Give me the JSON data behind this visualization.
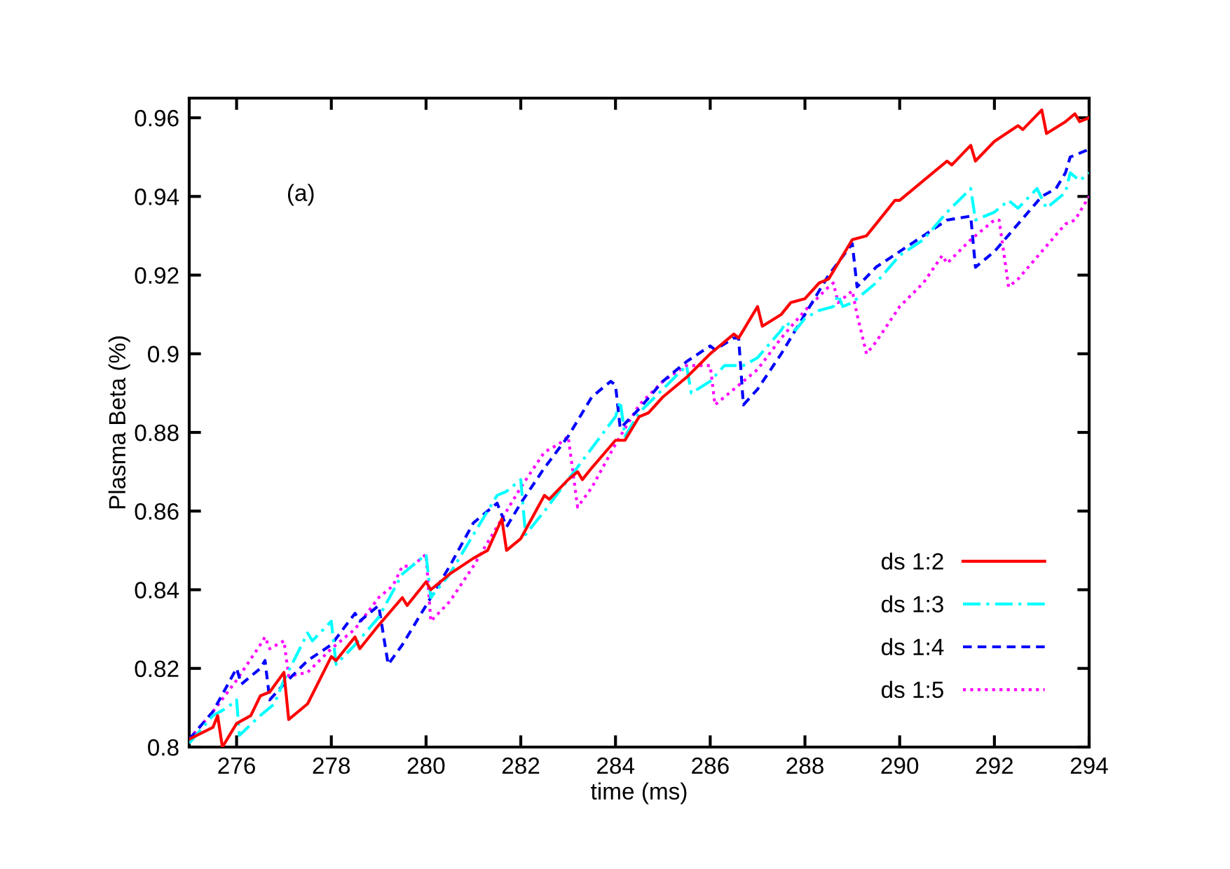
{
  "chart_data": {
    "type": "line",
    "xlabel": "time (ms)",
    "ylabel": "Plasma Beta (%)",
    "xlim": [
      275,
      294
    ],
    "xticks": [
      276,
      278,
      280,
      282,
      284,
      286,
      288,
      290,
      292,
      294
    ],
    "ylim": [
      0.8,
      0.965
    ],
    "yticks": [
      {
        "value": 0.8,
        "label": "0.8"
      },
      0.82,
      0.84,
      0.86,
      0.88,
      {
        "value": 0.9,
        "label": "0.9"
      },
      0.92,
      0.94,
      0.96
    ],
    "grid": false,
    "legend": "bottom right",
    "marker": "none",
    "annotations": [
      "(a)"
    ],
    "series": [
      {
        "name": "ds 1:2",
        "color": "#ff0000",
        "line_style": "solid",
        "x": [
          275,
          275.5,
          275.6,
          275.7,
          276.0,
          276.3,
          276.5,
          276.7,
          277.0,
          277.1,
          277.5,
          278.0,
          278.1,
          278.5,
          278.6,
          279.0,
          279.5,
          279.6,
          280.0,
          280.1,
          280.5,
          281.0,
          281.3,
          281.6,
          281.7,
          282.0,
          282.5,
          282.6,
          283.0,
          283.2,
          283.3,
          283.5,
          284.0,
          284.2,
          284.5,
          284.7,
          285.0,
          285.5,
          286.0,
          286.5,
          286.6,
          287.0,
          287.1,
          287.5,
          287.7,
          288.0,
          288.3,
          288.5,
          289.0,
          289.3,
          289.5,
          289.9,
          290.0,
          290.5,
          291.0,
          291.1,
          291.5,
          291.6,
          292.0,
          292.5,
          292.6,
          293.0,
          293.1,
          293.5,
          293.7,
          293.8,
          294.0
        ],
        "values": [
          0.802,
          0.805,
          0.808,
          0.8,
          0.806,
          0.808,
          0.813,
          0.814,
          0.819,
          0.807,
          0.811,
          0.823,
          0.822,
          0.828,
          0.825,
          0.831,
          0.838,
          0.836,
          0.842,
          0.84,
          0.844,
          0.848,
          0.85,
          0.858,
          0.85,
          0.853,
          0.864,
          0.863,
          0.868,
          0.87,
          0.868,
          0.871,
          0.878,
          0.878,
          0.884,
          0.885,
          0.889,
          0.894,
          0.9,
          0.905,
          0.904,
          0.912,
          0.907,
          0.91,
          0.913,
          0.914,
          0.918,
          0.919,
          0.929,
          0.93,
          0.933,
          0.939,
          0.939,
          0.944,
          0.949,
          0.948,
          0.953,
          0.949,
          0.954,
          0.958,
          0.957,
          0.962,
          0.956,
          0.959,
          0.961,
          0.959,
          0.96
        ]
      },
      {
        "name": "ds 1:3",
        "color": "#00ffff",
        "line_style": "dashdot",
        "x": [
          275,
          275.5,
          275.8,
          276.0,
          276.06,
          276.5,
          276.8,
          277.0,
          277.5,
          277.6,
          278.0,
          278.1,
          278.5,
          279.0,
          279.5,
          279.7,
          280.0,
          280.1,
          280.5,
          281.0,
          281.5,
          281.7,
          282.0,
          282.1,
          282.5,
          283.0,
          283.5,
          284.0,
          284.1,
          284.2,
          284.5,
          285.0,
          285.5,
          285.6,
          286.0,
          286.3,
          286.5,
          286.7,
          287.0,
          287.5,
          287.6,
          287.8,
          288.0,
          288.3,
          288.6,
          288.7,
          288.8,
          289.0,
          289.5,
          290.0,
          290.5,
          291.0,
          291.5,
          291.6,
          292.0,
          292.3,
          292.5,
          292.9,
          293.1,
          293.5,
          293.6,
          293.8,
          294.0
        ],
        "values": [
          0.801,
          0.808,
          0.81,
          0.812,
          0.803,
          0.808,
          0.811,
          0.817,
          0.829,
          0.827,
          0.832,
          0.821,
          0.826,
          0.833,
          0.844,
          0.846,
          0.849,
          0.838,
          0.844,
          0.854,
          0.864,
          0.865,
          0.868,
          0.854,
          0.86,
          0.868,
          0.876,
          0.884,
          0.888,
          0.879,
          0.885,
          0.891,
          0.897,
          0.89,
          0.893,
          0.897,
          0.897,
          0.897,
          0.899,
          0.906,
          0.908,
          0.906,
          0.909,
          0.911,
          0.912,
          0.915,
          0.912,
          0.913,
          0.918,
          0.925,
          0.929,
          0.936,
          0.942,
          0.934,
          0.936,
          0.939,
          0.937,
          0.942,
          0.937,
          0.941,
          0.946,
          0.944,
          0.946
        ]
      },
      {
        "name": "ds 1:4",
        "color": "#0000ff",
        "line_style": "dashed",
        "x": [
          275,
          275.5,
          276.0,
          276.1,
          276.5,
          276.6,
          276.7,
          277.0,
          277.5,
          278.0,
          278.5,
          278.6,
          279.0,
          279.2,
          279.5,
          280.0,
          280.5,
          281.0,
          281.5,
          281.7,
          282.0,
          282.5,
          283.0,
          283.5,
          283.9,
          284.0,
          284.1,
          284.5,
          285.0,
          285.5,
          286.0,
          286.1,
          286.5,
          286.6,
          286.7,
          287.0,
          287.5,
          288.0,
          288.5,
          289.0,
          289.1,
          289.5,
          290.0,
          290.5,
          291.0,
          291.5,
          291.6,
          292.0,
          292.5,
          293.0,
          293.3,
          293.5,
          293.6,
          294.0
        ],
        "values": [
          0.802,
          0.809,
          0.82,
          0.816,
          0.82,
          0.822,
          0.812,
          0.816,
          0.822,
          0.826,
          0.834,
          0.832,
          0.836,
          0.821,
          0.826,
          0.836,
          0.846,
          0.857,
          0.862,
          0.856,
          0.862,
          0.871,
          0.879,
          0.889,
          0.893,
          0.892,
          0.881,
          0.886,
          0.893,
          0.898,
          0.902,
          0.901,
          0.904,
          0.904,
          0.887,
          0.891,
          0.9,
          0.91,
          0.92,
          0.928,
          0.917,
          0.922,
          0.926,
          0.93,
          0.934,
          0.935,
          0.922,
          0.926,
          0.933,
          0.94,
          0.942,
          0.946,
          0.95,
          0.952
        ]
      },
      {
        "name": "ds 1:5",
        "color": "#ff00ff",
        "line_style": "dotted",
        "x": [
          275,
          275.5,
          276.0,
          276.5,
          276.6,
          276.7,
          277.0,
          277.1,
          277.5,
          278.0,
          278.5,
          279.0,
          279.3,
          279.5,
          279.7,
          280.0,
          280.1,
          280.5,
          281.0,
          281.5,
          282.0,
          282.5,
          282.8,
          283.0,
          283.2,
          283.5,
          284.0,
          284.5,
          285.0,
          285.5,
          285.7,
          286.0,
          286.1,
          286.5,
          287.0,
          287.5,
          288.0,
          288.5,
          288.6,
          288.7,
          289.0,
          289.1,
          289.3,
          289.5,
          290.0,
          290.5,
          290.9,
          291.0,
          291.5,
          292.0,
          292.1,
          292.3,
          292.5,
          293.0,
          293.5,
          293.7,
          294.0
        ],
        "values": [
          0.802,
          0.809,
          0.817,
          0.826,
          0.828,
          0.825,
          0.827,
          0.818,
          0.819,
          0.825,
          0.83,
          0.838,
          0.841,
          0.846,
          0.846,
          0.849,
          0.832,
          0.837,
          0.846,
          0.856,
          0.866,
          0.875,
          0.877,
          0.879,
          0.861,
          0.866,
          0.877,
          0.887,
          0.893,
          0.897,
          0.897,
          0.897,
          0.887,
          0.891,
          0.896,
          0.904,
          0.911,
          0.917,
          0.918,
          0.913,
          0.916,
          0.91,
          0.9,
          0.903,
          0.912,
          0.918,
          0.925,
          0.923,
          0.929,
          0.934,
          0.934,
          0.917,
          0.919,
          0.926,
          0.933,
          0.934,
          0.94
        ]
      }
    ]
  }
}
